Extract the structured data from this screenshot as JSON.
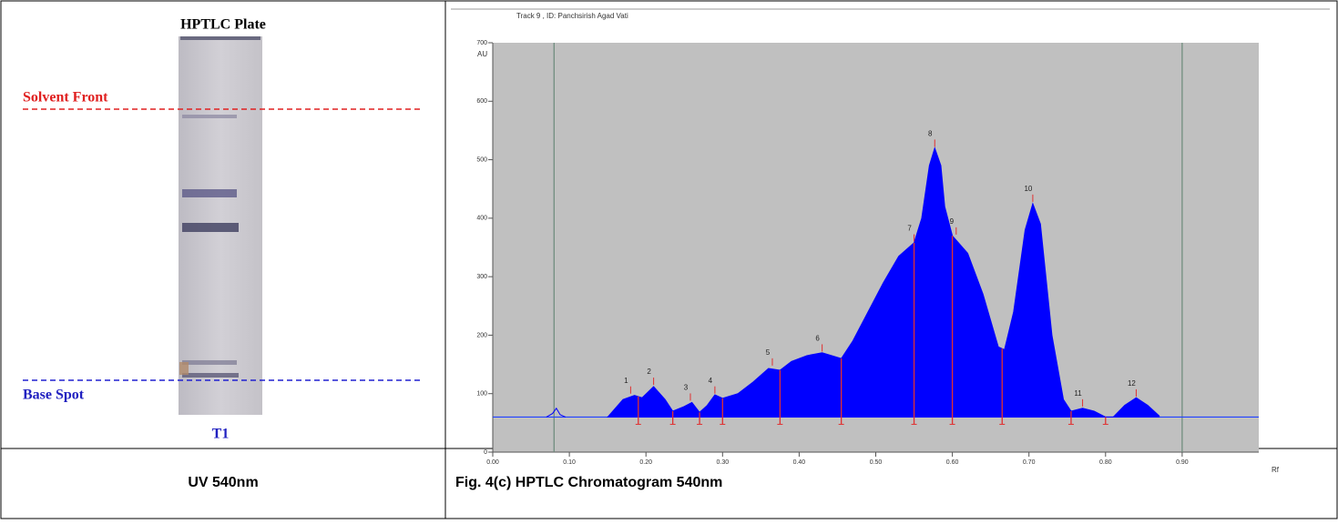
{
  "plate": {
    "title": "HPTLC Plate",
    "solvent_front": "Solvent Front",
    "base_spot": "Base Spot",
    "track": "T1"
  },
  "captions": [
    "UV 540nm",
    "Fig. 4(c) HPTLC Chromatogram 540nm"
  ],
  "chart_data": {
    "type": "line",
    "title": "Track 9 , ID: Panchsirish Agad Vati",
    "y_label": "AU",
    "x_label": "Rf",
    "xlim": [
      0,
      1
    ],
    "ylim": [
      0,
      700
    ],
    "yticks": [
      0,
      100,
      200,
      300,
      400,
      500,
      600,
      700
    ],
    "xticks": [
      {
        "value": 0,
        "label": "0.00"
      },
      {
        "value": 0.1,
        "label": "0.10"
      },
      {
        "value": 0.2,
        "label": "0.20"
      },
      {
        "value": 0.3,
        "label": "0.30"
      },
      {
        "value": 0.4,
        "label": "0.40"
      },
      {
        "value": 0.5,
        "label": "0.50"
      },
      {
        "value": 0.6,
        "label": "0.60"
      },
      {
        "value": 0.7,
        "label": "0.70"
      },
      {
        "value": 0.8,
        "label": "0.80"
      },
      {
        "value": 0.9,
        "label": "0.90"
      }
    ],
    "baseline": 60,
    "markers": [
      0.08,
      0.9
    ],
    "curves": [
      {
        "color": "#0000ff",
        "filled": true,
        "x": [
          0.15,
          0.17,
          0.185,
          0.195,
          0.21,
          0.225,
          0.235,
          0.25,
          0.26,
          0.27,
          0.28,
          0.29,
          0.3,
          0.32,
          0.34,
          0.36,
          0.375,
          0.39,
          0.41,
          0.43,
          0.455,
          0.47,
          0.49,
          0.51,
          0.53,
          0.55,
          0.56,
          0.57,
          0.577,
          0.585,
          0.59,
          0.6,
          0.62,
          0.64,
          0.66,
          0.668,
          0.68,
          0.695,
          0.705,
          0.715,
          0.73,
          0.745,
          0.755,
          0.77,
          0.785,
          0.8,
          0.81,
          0.825,
          0.84,
          0.855,
          0.87
        ],
        "values": [
          60,
          90,
          97,
          93,
          112,
          90,
          70,
          78,
          85,
          68,
          80,
          98,
          92,
          100,
          120,
          143,
          140,
          155,
          165,
          170,
          160,
          190,
          240,
          290,
          335,
          358,
          400,
          490,
          520,
          490,
          420,
          370,
          340,
          270,
          180,
          175,
          240,
          380,
          425,
          390,
          200,
          90,
          70,
          75,
          70,
          60,
          60,
          80,
          93,
          80,
          62
        ]
      },
      {
        "color": "#0000ff",
        "filled": false,
        "x": [
          0.07,
          0.078,
          0.083,
          0.088,
          0.095
        ],
        "values": [
          60,
          66,
          75,
          64,
          60
        ]
      }
    ],
    "boundaries": [
      0.19,
      0.235,
      0.27,
      0.3,
      0.375,
      0.455,
      0.55,
      0.6,
      0.665,
      0.755,
      0.8
    ],
    "peaks": [
      {
        "label": "1",
        "x": 0.18,
        "y": 100
      },
      {
        "label": "2",
        "x": 0.21,
        "y": 115
      },
      {
        "label": "3",
        "x": 0.258,
        "y": 88
      },
      {
        "label": "4",
        "x": 0.29,
        "y": 100
      },
      {
        "label": "5",
        "x": 0.365,
        "y": 148
      },
      {
        "label": "6",
        "x": 0.43,
        "y": 172
      },
      {
        "label": "7",
        "x": 0.55,
        "y": 360
      },
      {
        "label": "8",
        "x": 0.577,
        "y": 522
      },
      {
        "label": "9",
        "x": 0.605,
        "y": 372
      },
      {
        "label": "10",
        "x": 0.705,
        "y": 428
      },
      {
        "label": "11",
        "x": 0.77,
        "y": 78
      },
      {
        "label": "12",
        "x": 0.84,
        "y": 95
      }
    ]
  }
}
